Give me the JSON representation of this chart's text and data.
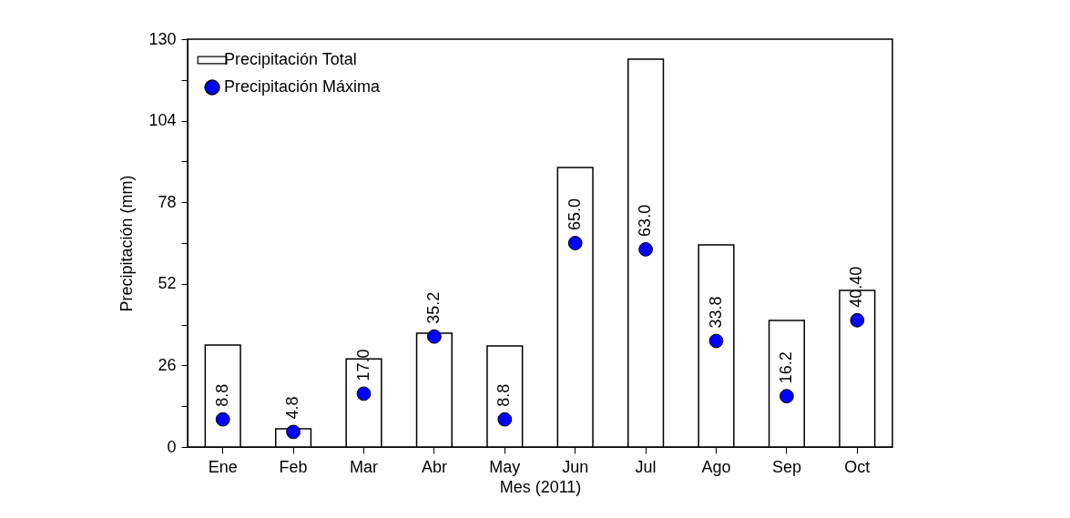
{
  "chart_data": {
    "type": "bar",
    "xlabel": "Mes (2011)",
    "ylabel": "Precipitación (mm)",
    "categories": [
      "Ene",
      "Feb",
      "Mar",
      "Abr",
      "May",
      "Jun",
      "Jul",
      "Ago",
      "Sep",
      "Oct"
    ],
    "series": [
      {
        "name": "Precipitación Total",
        "color": "#ffffff",
        "values": [
          32.5,
          5.8,
          28.1,
          36.3,
          32.2,
          89.1,
          123.6,
          64.4,
          40.3,
          49.9
        ]
      },
      {
        "name": "Precipitación Máxima",
        "type": "scatter",
        "color": "#0000ff",
        "marker": "circle",
        "values": [
          8.8,
          4.8,
          17.0,
          35.2,
          8.8,
          65.0,
          63.0,
          33.8,
          16.2,
          40.4
        ],
        "value_labels": [
          "8.8",
          "4.8",
          "17.0",
          "35.2",
          "8.8",
          "65.0",
          "63.0",
          "33.8",
          "16.2",
          "40.40"
        ]
      }
    ],
    "ylim": [
      0,
      130
    ],
    "yticks": [
      0,
      {
        "value": 13,
        "label": null
      },
      26,
      {
        "value": 39,
        "label": null
      },
      52,
      {
        "value": 65,
        "label": null
      },
      78,
      {
        "value": 91,
        "label": null
      },
      104,
      {
        "value": 117,
        "label": null
      },
      130
    ],
    "legend": "top left"
  }
}
